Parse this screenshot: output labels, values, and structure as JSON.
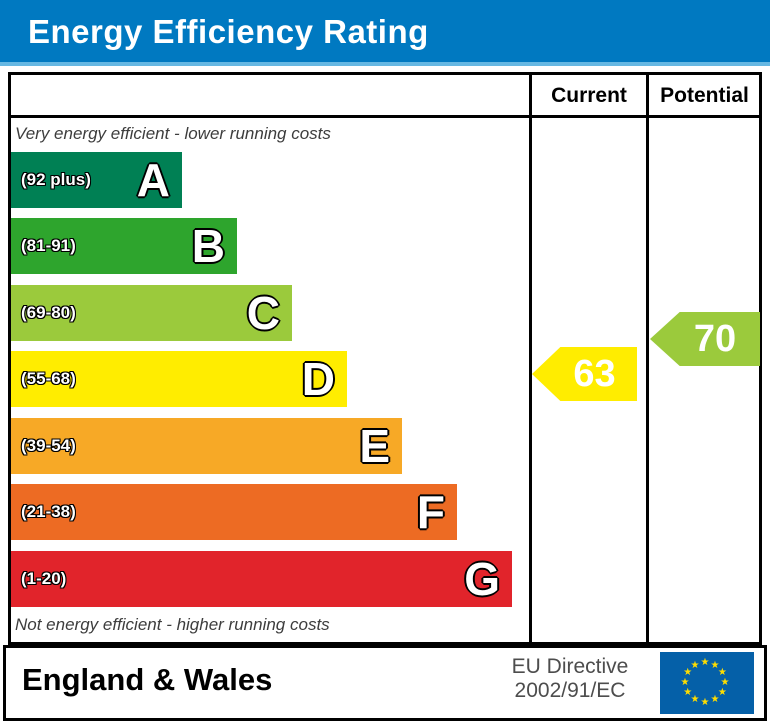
{
  "header": {
    "title": "Energy Efficiency Rating"
  },
  "table": {
    "current_label": "Current",
    "potential_label": "Potential"
  },
  "captions": {
    "top": "Very energy efficient - lower running costs",
    "bottom": "Not energy efficient - higher running costs"
  },
  "bands": [
    {
      "letter": "A",
      "range": "(92 plus)",
      "color": "#008054"
    },
    {
      "letter": "B",
      "range": "(81-91)",
      "color": "#2EA52D"
    },
    {
      "letter": "C",
      "range": "(69-80)",
      "color": "#9BCA3C"
    },
    {
      "letter": "D",
      "range": "(55-68)",
      "color": "#FFED00"
    },
    {
      "letter": "E",
      "range": "(39-54)",
      "color": "#F7A926"
    },
    {
      "letter": "F",
      "range": "(21-38)",
      "color": "#ED6B23"
    },
    {
      "letter": "G",
      "range": "(1-20)",
      "color": "#E1242B"
    }
  ],
  "indicators": {
    "current": {
      "value": "63",
      "color": "#FFED00"
    },
    "potential": {
      "value": "70",
      "color": "#9BCA3C"
    }
  },
  "footer": {
    "region": "England & Wales",
    "directive_line1": "EU Directive",
    "directive_line2": "2002/91/EC"
  },
  "flag": {
    "background": "#0560A8",
    "star_color": "#FFDD00"
  },
  "accent_colors": {
    "header_blue": "#0079C1",
    "header_strip_blue": "#66B8E3"
  },
  "chart_data": {
    "type": "bar",
    "title": "Energy Efficiency Rating",
    "categories": [
      "A",
      "B",
      "C",
      "D",
      "E",
      "F",
      "G"
    ],
    "band_ranges": [
      "92 plus",
      "81-91",
      "69-80",
      "55-68",
      "39-54",
      "21-38",
      "1-20"
    ],
    "band_colors": [
      "#008054",
      "#2EA52D",
      "#9BCA3C",
      "#FFED00",
      "#F7A926",
      "#ED6B23",
      "#E1242B"
    ],
    "bar_widths_relative": [
      172,
      227,
      282,
      337,
      392,
      447,
      502
    ],
    "series": [
      {
        "name": "Current",
        "value": 63,
        "band": "D"
      },
      {
        "name": "Potential",
        "value": 70,
        "band": "C"
      }
    ],
    "top_annotation": "Very energy efficient - lower running costs",
    "bottom_annotation": "Not energy efficient - higher running costs",
    "footer_left": "England & Wales",
    "footer_right": "EU Directive 2002/91/EC",
    "legend_position": "top-right-columns"
  }
}
